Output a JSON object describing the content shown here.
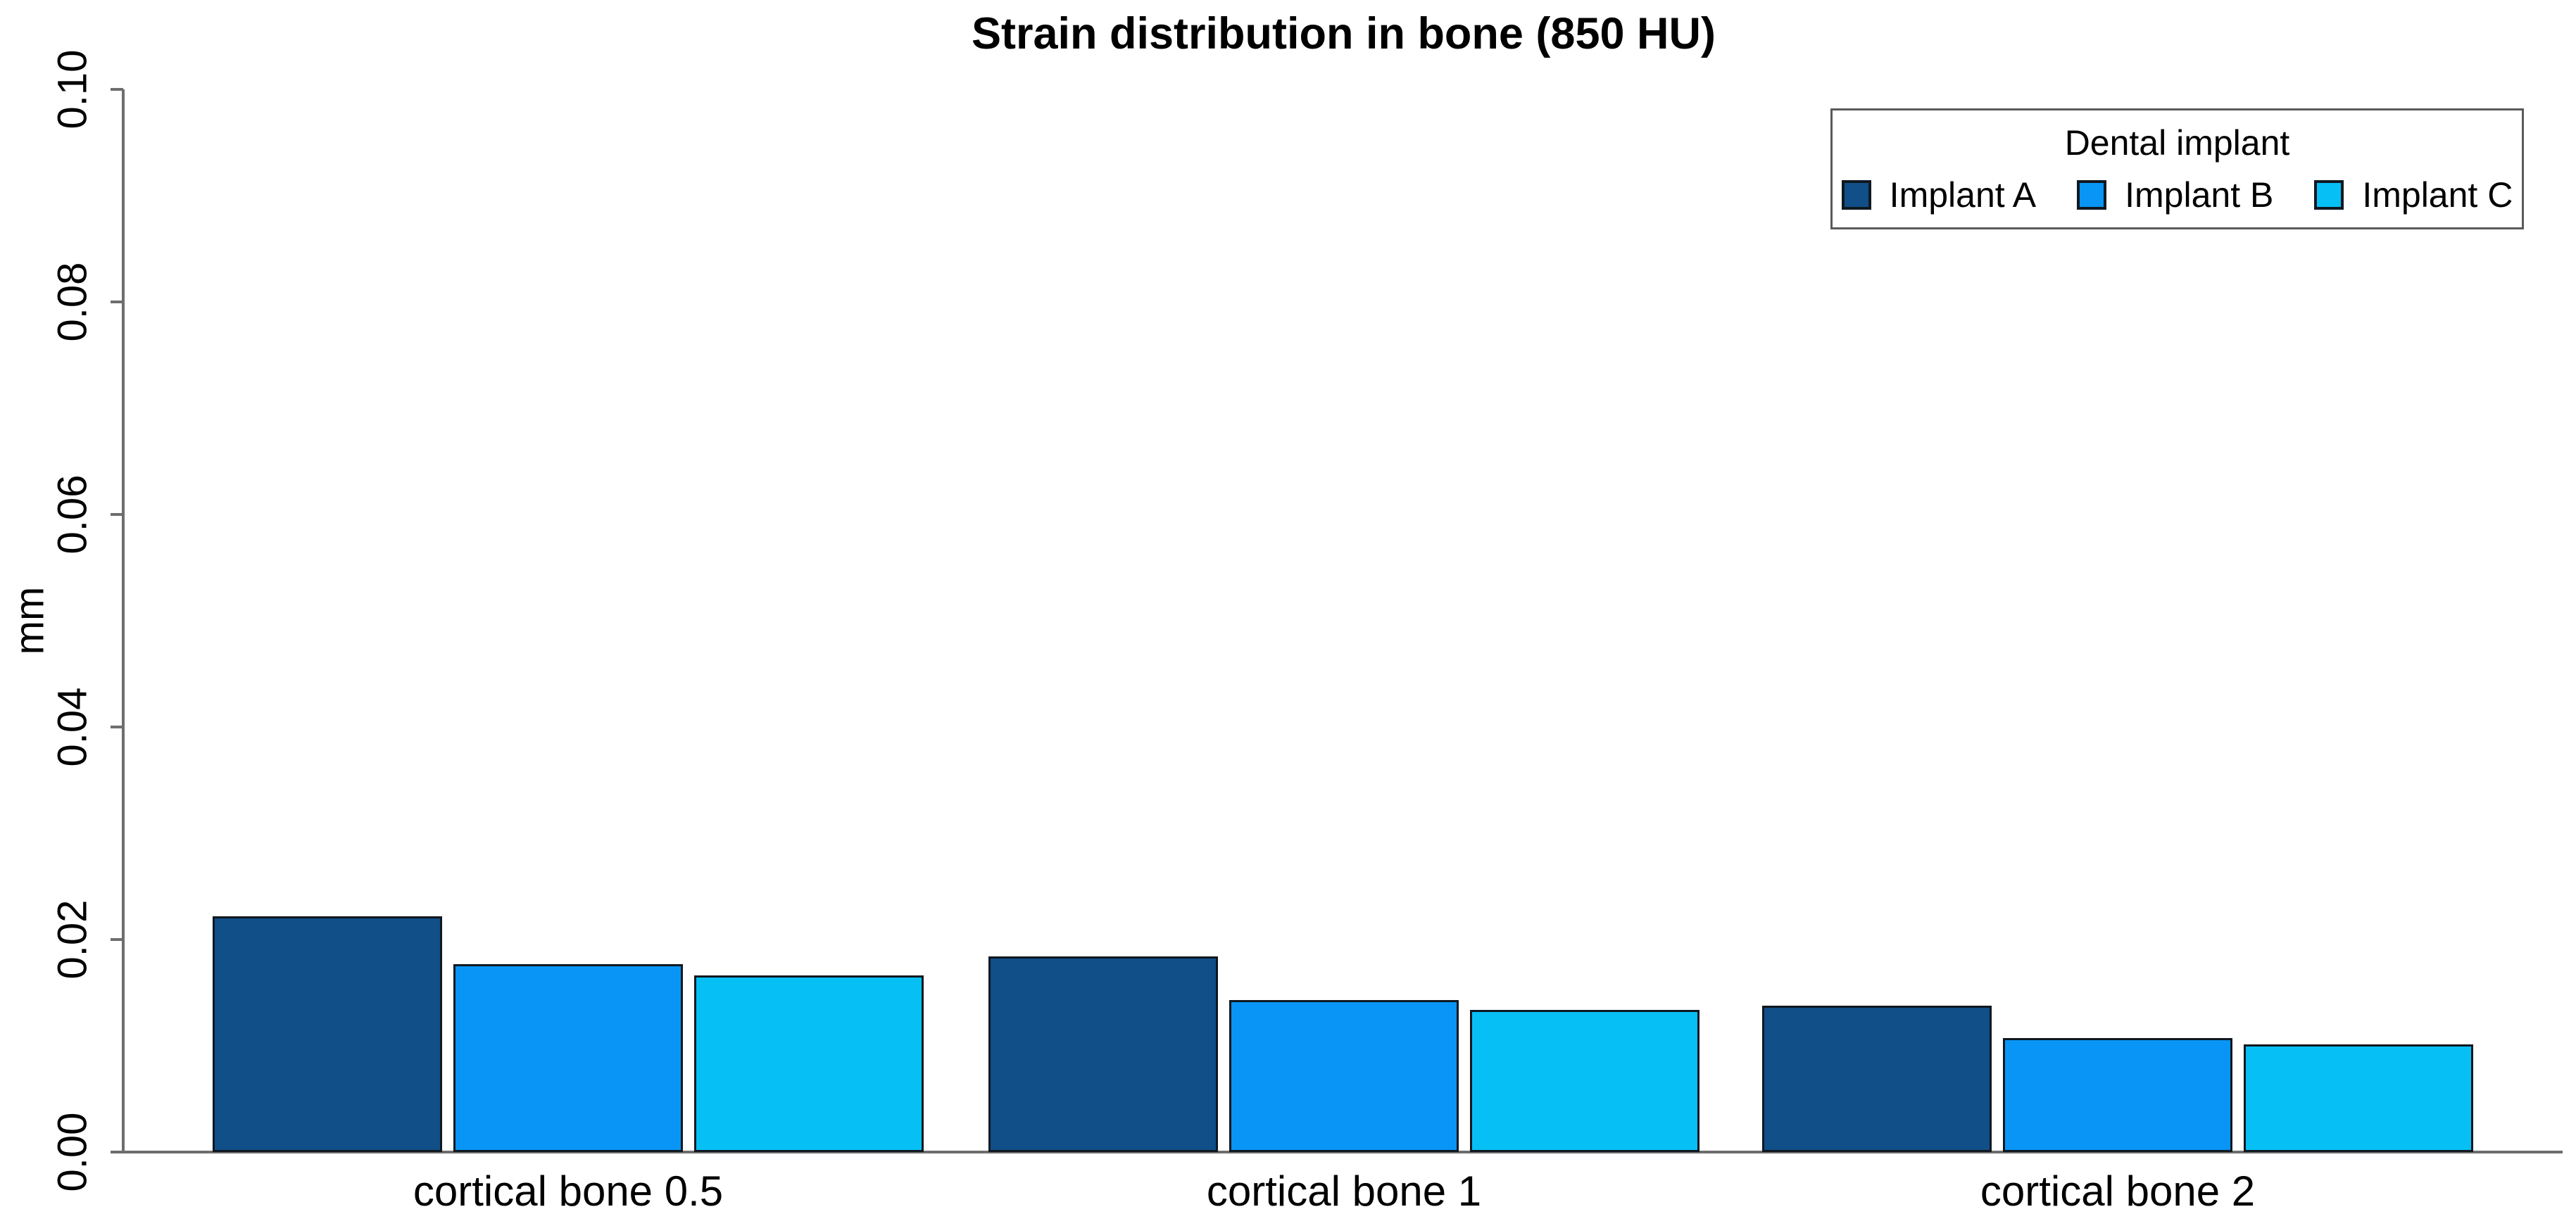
{
  "chart_data": {
    "type": "bar",
    "title": "Strain distribution in bone (850 HU)",
    "xlabel": "",
    "ylabel": "mm",
    "ylim": [
      0,
      0.1
    ],
    "yticks": [
      0.0,
      0.02,
      0.04,
      0.06,
      0.08,
      0.1
    ],
    "grid": false,
    "categories": [
      "cortical bone 0.5",
      "cortical bone 1",
      "cortical bone 2"
    ],
    "series": [
      {
        "name": "Implant A",
        "color": "#104F88",
        "values": [
          0.0222,
          0.0184,
          0.0138
        ]
      },
      {
        "name": "Implant B",
        "color": "#0895F5",
        "values": [
          0.0177,
          0.0143,
          0.0107
        ]
      },
      {
        "name": "Implant C",
        "color": "#06C0F5",
        "values": [
          0.0166,
          0.0134,
          0.0101
        ]
      }
    ],
    "legend": {
      "title": "Dental implant",
      "position": "top-right"
    }
  }
}
